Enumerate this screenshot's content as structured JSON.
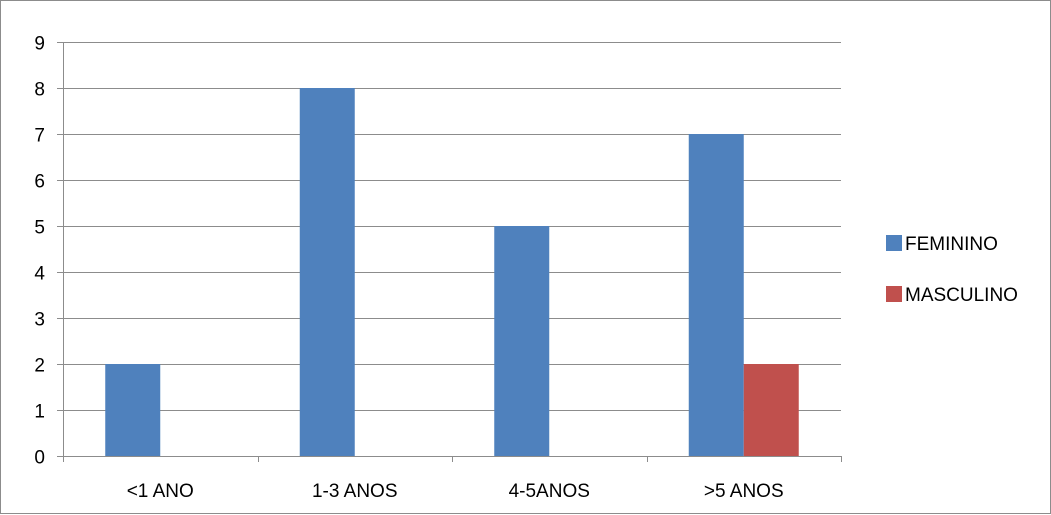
{
  "chart_data": {
    "type": "bar",
    "categories": [
      "<1 ANO",
      "1-3 ANOS",
      "4-5ANOS",
      ">5 ANOS"
    ],
    "series": [
      {
        "name": "FEMININO",
        "values": [
          2,
          8,
          5,
          7
        ],
        "color": "#4f81bd"
      },
      {
        "name": "MASCULINO",
        "values": [
          0,
          0,
          0,
          2
        ],
        "color": "#c0504d"
      }
    ],
    "ylim": [
      0,
      9
    ],
    "yticks": [
      "0",
      "1",
      "2",
      "3",
      "4",
      "5",
      "6",
      "7",
      "8",
      "9"
    ],
    "grid": true,
    "legend_position": "right"
  }
}
